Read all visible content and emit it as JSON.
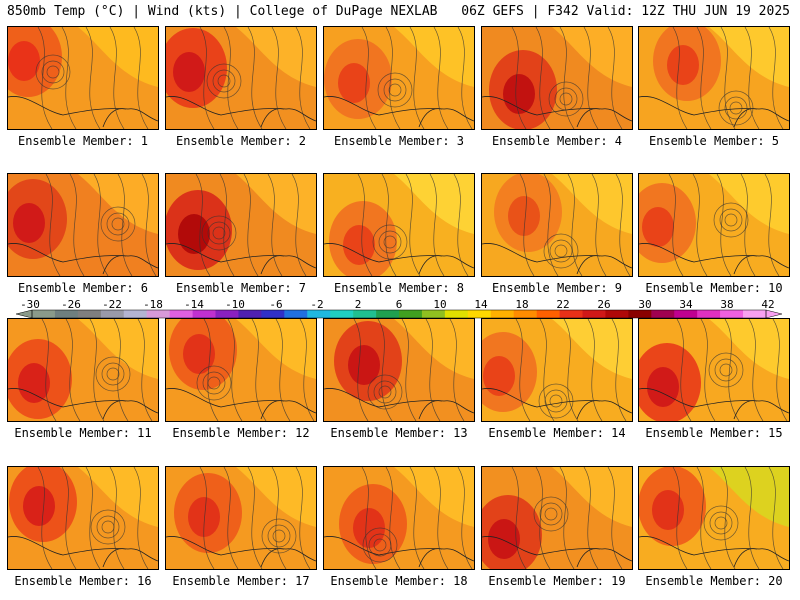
{
  "header": {
    "left": "850mb Temp (°C) | Wind (kts) | College of DuPage NEXLAB",
    "right": "06Z GEFS | F342 Valid: 12Z THU JUN 19 2025"
  },
  "colorbar": {
    "labels": [
      "-30",
      "-26",
      "-22",
      "-18",
      "-14",
      "-10",
      "-6",
      "-2",
      "2",
      "6",
      "10",
      "14",
      "18",
      "22",
      "26",
      "30",
      "34",
      "38",
      "42"
    ],
    "colors": [
      "#8a9a8a",
      "#6f7f7f",
      "#7f7f7f",
      "#9a9aa8",
      "#b4b4d2",
      "#d89ad8",
      "#e060e0",
      "#c030d0",
      "#8a20c0",
      "#5020b0",
      "#3030c8",
      "#2070e0",
      "#20b8e0",
      "#20d0c0",
      "#20c090",
      "#20a050",
      "#40a020",
      "#90c020",
      "#e0e000",
      "#ffd800",
      "#ffb000",
      "#ff8c00",
      "#ff6000",
      "#e83018",
      "#d01818",
      "#b00808",
      "#8a0000",
      "#a00050",
      "#c00090",
      "#e030c0",
      "#f060e0",
      "#f8a0f0"
    ]
  },
  "panels": [
    {
      "label": "Ensemble Member: 1",
      "base": "#f59a20",
      "hot": [
        "#e83018",
        "#ee5a1a"
      ],
      "cool": "#ffc020"
    },
    {
      "label": "Ensemble Member: 2",
      "base": "#f29020",
      "hot": [
        "#d01818",
        "#e83a18"
      ],
      "cool": "#ffb82a"
    },
    {
      "label": "Ensemble Member: 3",
      "base": "#f7a020",
      "hot": [
        "#e84018",
        "#f07020"
      ],
      "cool": "#ffc828"
    },
    {
      "label": "Ensemble Member: 4",
      "base": "#f08a20",
      "hot": [
        "#c01010",
        "#e03a18"
      ],
      "cool": "#ffb428"
    },
    {
      "label": "Ensemble Member: 5",
      "base": "#f7a420",
      "hot": [
        "#e84018",
        "#f07020"
      ],
      "cool": "#ffd030"
    },
    {
      "label": "Ensemble Member: 6",
      "base": "#f08020",
      "hot": [
        "#d01818",
        "#e04018"
      ],
      "cool": "#ffb428"
    },
    {
      "label": "Ensemble Member: 7",
      "base": "#f08a20",
      "hot": [
        "#b00808",
        "#d82818"
      ],
      "cool": "#ffb82a"
    },
    {
      "label": "Ensemble Member: 8",
      "base": "#f8b020",
      "hot": [
        "#e84018",
        "#f07020"
      ],
      "cool": "#ffd838"
    },
    {
      "label": "Ensemble Member: 9",
      "base": "#f7a820",
      "hot": [
        "#e85018",
        "#f27a20"
      ],
      "cool": "#ffcc30"
    },
    {
      "label": "Ensemble Member: 10",
      "base": "#f8ac20",
      "hot": [
        "#e84018",
        "#f07020"
      ],
      "cool": "#ffd030"
    },
    {
      "label": "Ensemble Member: 11",
      "base": "#f59820",
      "hot": [
        "#d82018",
        "#ec4a18"
      ],
      "cool": "#ffc028"
    },
    {
      "label": "Ensemble Member: 12",
      "base": "#f59a20",
      "hot": [
        "#e03018",
        "#ee5a1a"
      ],
      "cool": "#ffc028"
    },
    {
      "label": "Ensemble Member: 13",
      "base": "#f29020",
      "hot": [
        "#c81414",
        "#e03a18"
      ],
      "cool": "#ffbc28"
    },
    {
      "label": "Ensemble Member: 14",
      "base": "#f8ac20",
      "hot": [
        "#e84018",
        "#f07020"
      ],
      "cool": "#ffd438"
    },
    {
      "label": "Ensemble Member: 15",
      "base": "#f8a820",
      "hot": [
        "#d01818",
        "#e83a18"
      ],
      "cool": "#ffd030"
    },
    {
      "label": "Ensemble Member: 16",
      "base": "#f59820",
      "hot": [
        "#d82018",
        "#ec4a18"
      ],
      "cool": "#ffc028"
    },
    {
      "label": "Ensemble Member: 17",
      "base": "#f59a20",
      "hot": [
        "#e03018",
        "#ee5a1a"
      ],
      "cool": "#ffc028"
    },
    {
      "label": "Ensemble Member: 18",
      "base": "#f59a20",
      "hot": [
        "#e03018",
        "#ee5a1a"
      ],
      "cool": "#ffc028"
    },
    {
      "label": "Ensemble Member: 19",
      "base": "#f29020",
      "hot": [
        "#c81414",
        "#e03a18"
      ],
      "cool": "#ffbc28"
    },
    {
      "label": "Ensemble Member: 20",
      "base": "#f8ac20",
      "hot": [
        "#e03018",
        "#ee5a1a"
      ],
      "cool": "#d8d820"
    }
  ]
}
